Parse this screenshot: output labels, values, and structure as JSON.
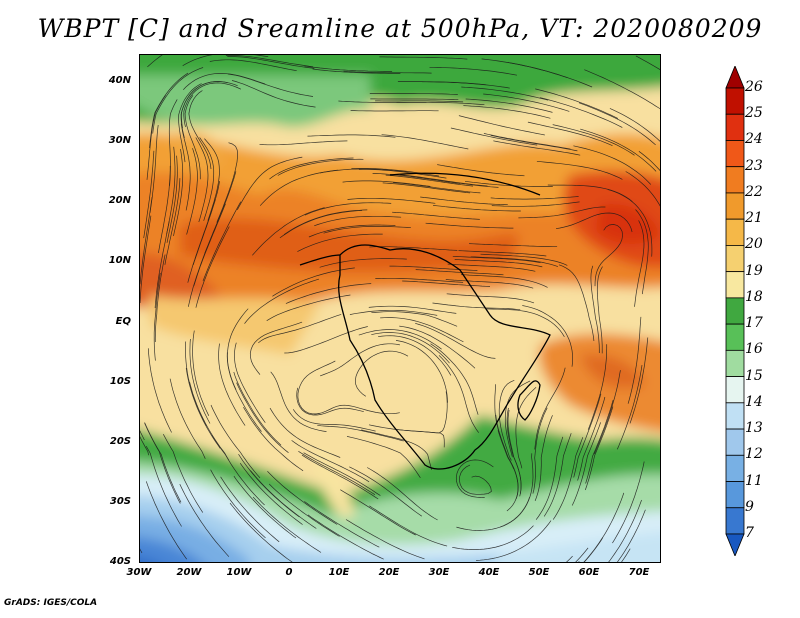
{
  "title": "WBPT [C] and Sreamline at 500hPa, VT: 2020080209",
  "credit": "GrADS: IGES/COLA",
  "map": {
    "lat_labels": [
      "40N",
      "30N",
      "20N",
      "10N",
      "EQ",
      "10S",
      "20S",
      "30S",
      "40S"
    ],
    "lon_labels": [
      "30W",
      "20W",
      "10W",
      "0",
      "10E",
      "20E",
      "30E",
      "40E",
      "50E",
      "60E",
      "70E"
    ]
  },
  "colorbar": {
    "labels": [
      "26",
      "25",
      "24",
      "23",
      "22",
      "21",
      "20",
      "19",
      "18",
      "17",
      "16",
      "15",
      "14",
      "13",
      "12",
      "11",
      "9",
      "7"
    ],
    "colors": [
      "#a00000",
      "#c01000",
      "#e03010",
      "#f05818",
      "#f07c20",
      "#f09a2c",
      "#f5b848",
      "#f5d070",
      "#f8e8a0",
      "#40a840",
      "#58c058",
      "#a0dca0",
      "#e6f5f0",
      "#c0e0f4",
      "#a0c8ec",
      "#78b0e4",
      "#5898dc",
      "#3878d0",
      "#1858c0"
    ]
  }
}
